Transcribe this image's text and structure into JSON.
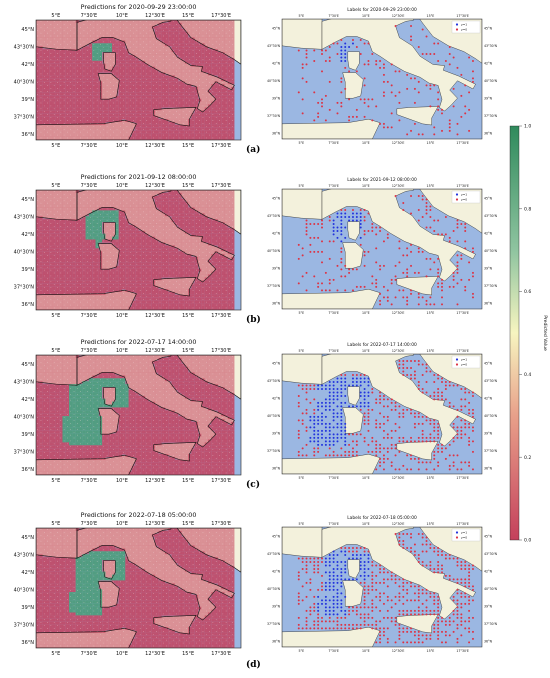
{
  "panels": [
    {
      "letter": "(a)",
      "pred_title": "Predictions for 2020-09-29 23:00:00",
      "label_title": "Labels for 2020-09-29 23:00:00"
    },
    {
      "letter": "(b)",
      "pred_title": "Predictions for 2021-09-12 08:00:00",
      "label_title": "Labels for 2021-09-12 08:00:00"
    },
    {
      "letter": "(c)",
      "pred_title": "Predictions for 2022-07-17 14:00:00",
      "label_title": "Labels for 2022-07-17 14:00:00"
    },
    {
      "letter": "(d)",
      "pred_title": "Predictions for 2022-07-18 05:00:00",
      "label_title": "Labels for 2022-07-18 05:00:00"
    }
  ],
  "axes": {
    "lon_ticks": [
      "5°E",
      "7°30'E",
      "10°E",
      "12°30'E",
      "15°E",
      "17°30'E"
    ],
    "lat_ticks": [
      "45°N",
      "43°30'N",
      "42°N",
      "40°30'N",
      "39°N",
      "37°30'N",
      "36°N"
    ],
    "lon_range": [
      3.5,
      19.0
    ],
    "lat_range": [
      35.5,
      45.8
    ]
  },
  "legend": {
    "entries": [
      "y=1",
      "y=0"
    ],
    "colors": [
      "#2233dd",
      "#dd3344"
    ]
  },
  "colorbar": {
    "label": "Predicted Value",
    "ticks": [
      "1.0",
      "0.8",
      "0.6",
      "0.4",
      "0.2",
      "0.0"
    ],
    "colors": {
      "low": "#c4405b",
      "mid": "#f7f5c0",
      "high": "#2f8a5c"
    }
  },
  "colors": {
    "sea": "#9bb7e2",
    "land": "#f3f1dc",
    "pred_low": "#c4405b",
    "pred_high": "#4a9a77"
  }
}
